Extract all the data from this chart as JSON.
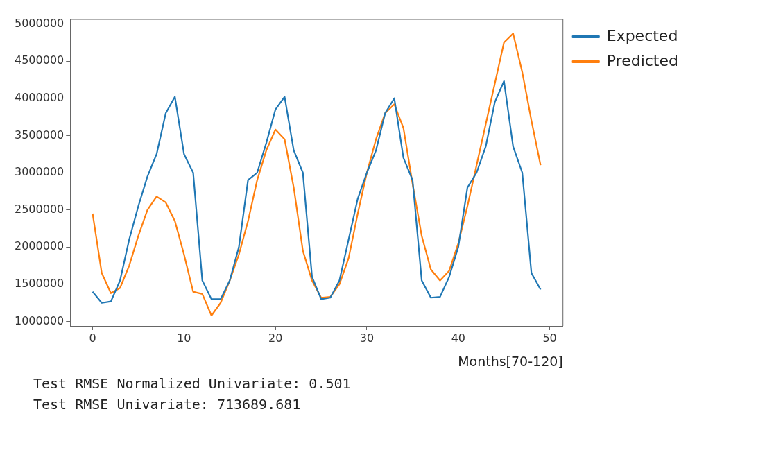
{
  "chart_data": {
    "type": "line",
    "xlabel": "Months[70-120]",
    "x": [
      0,
      1,
      2,
      3,
      4,
      5,
      6,
      7,
      8,
      9,
      10,
      11,
      12,
      13,
      14,
      15,
      16,
      17,
      18,
      19,
      20,
      21,
      22,
      23,
      24,
      25,
      26,
      27,
      28,
      29,
      30,
      31,
      32,
      33,
      34,
      35,
      36,
      37,
      38,
      39,
      40,
      41,
      42,
      43,
      44,
      45,
      46,
      47,
      48,
      49
    ],
    "series": [
      {
        "name": "Expected",
        "color": "#1f77b4",
        "values": [
          1400000,
          1250000,
          1270000,
          1550000,
          2100000,
          2550000,
          2950000,
          3250000,
          3800000,
          4020000,
          3250000,
          3000000,
          1550000,
          1300000,
          1300000,
          1550000,
          2000000,
          2900000,
          3000000,
          3400000,
          3850000,
          4020000,
          3300000,
          3000000,
          1600000,
          1300000,
          1320000,
          1550000,
          2100000,
          2650000,
          3000000,
          3300000,
          3800000,
          4000000,
          3200000,
          2900000,
          1550000,
          1320000,
          1330000,
          1600000,
          2000000,
          2800000,
          3000000,
          3350000,
          3950000,
          4230000,
          3350000,
          3000000,
          1650000,
          1430000
        ]
      },
      {
        "name": "Predicted",
        "color": "#ff7f0e",
        "values": [
          2450000,
          1650000,
          1380000,
          1450000,
          1750000,
          2150000,
          2500000,
          2680000,
          2600000,
          2350000,
          1900000,
          1400000,
          1370000,
          1080000,
          1250000,
          1550000,
          1900000,
          2350000,
          2900000,
          3300000,
          3580000,
          3450000,
          2800000,
          1950000,
          1550000,
          1320000,
          1330000,
          1500000,
          1850000,
          2450000,
          3000000,
          3450000,
          3800000,
          3920000,
          3600000,
          2850000,
          2150000,
          1700000,
          1550000,
          1680000,
          2050000,
          2550000,
          3100000,
          3650000,
          4200000,
          4750000,
          4870000,
          4350000,
          3700000,
          3100000
        ]
      }
    ],
    "xlim": [
      -2.45,
      51.45
    ],
    "xticks": [
      0,
      10,
      20,
      30,
      40,
      50
    ],
    "ylim": [
      940000,
      5060000
    ],
    "yticks": [
      1000000,
      1500000,
      2000000,
      2500000,
      3000000,
      3500000,
      4000000,
      4500000,
      5000000
    ],
    "legend": "top right",
    "marker": "none",
    "line_style": "solid",
    "grid": false,
    "annotations": [
      "Test RMSE Normalized Univariate: 0.501",
      "Test RMSE Univariate: 713689.681"
    ]
  }
}
